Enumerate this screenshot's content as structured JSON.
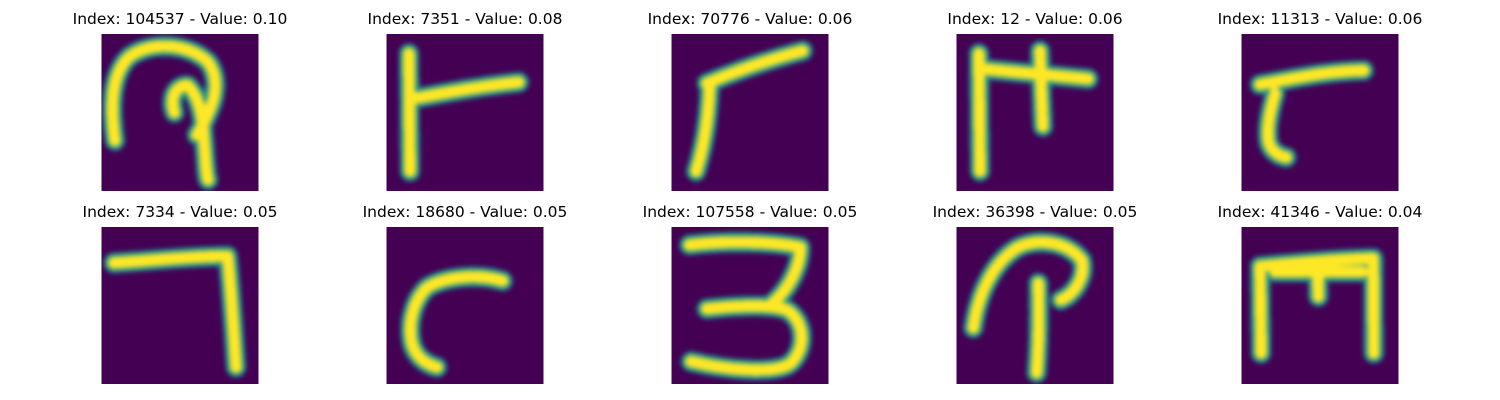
{
  "chart_data": {
    "type": "image-grid",
    "colormap": "viridis",
    "colors": {
      "background": "#440154",
      "stroke": "#fde725",
      "edge": "#21918c"
    },
    "panels": [
      {
        "title": "Index: 104537 - Value: 0.10",
        "index": 104537,
        "value": 0.1,
        "glyph": "loop-stem-glyph"
      },
      {
        "title": "Index: 7351 - Value: 0.08",
        "index": 7351,
        "value": 0.08,
        "glyph": "l-bar-glyph"
      },
      {
        "title": "Index: 70776 - Value: 0.06",
        "index": 70776,
        "value": 0.06,
        "glyph": "angle-glyph"
      },
      {
        "title": "Index: 12 - Value: 0.06",
        "index": 12,
        "value": 0.06,
        "glyph": "cross-glyph"
      },
      {
        "title": "Index: 11313 - Value: 0.06",
        "index": 11313,
        "value": 0.06,
        "glyph": "hook-glyph"
      },
      {
        "title": "Index: 7334 - Value: 0.05",
        "index": 7334,
        "value": 0.05,
        "glyph": "seven-glyph"
      },
      {
        "title": "Index: 18680 - Value: 0.05",
        "index": 18680,
        "value": 0.05,
        "glyph": "c-curve-glyph"
      },
      {
        "title": "Index: 107558 - Value: 0.05",
        "index": 107558,
        "value": 0.05,
        "glyph": "three-glyph"
      },
      {
        "title": "Index: 36398 - Value: 0.05",
        "index": 36398,
        "value": 0.05,
        "glyph": "p-loop-glyph"
      },
      {
        "title": "Index: 41346 - Value: 0.04",
        "index": 41346,
        "value": 0.04,
        "glyph": "m-frame-glyph"
      }
    ]
  }
}
